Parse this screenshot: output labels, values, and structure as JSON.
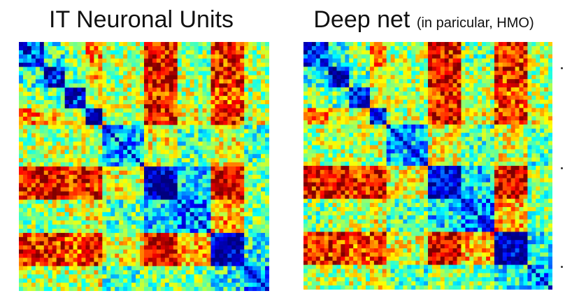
{
  "panels": [
    {
      "title": "IT Neuronal Units",
      "subtitle": "",
      "matrix": {
        "n": 60,
        "blocks": [
          0,
          6,
          11,
          16,
          20,
          30,
          38,
          46,
          54,
          60
        ],
        "seed": 7
      }
    },
    {
      "title": "Deep net",
      "subtitle": "(in paricular, HMO)",
      "matrix": {
        "n": 60,
        "blocks": [
          0,
          6,
          11,
          16,
          20,
          30,
          38,
          46,
          54,
          60
        ],
        "seed": 19
      }
    }
  ],
  "colors": {
    "colormap": "jet",
    "low": "#00008f",
    "high": "#800000"
  }
}
